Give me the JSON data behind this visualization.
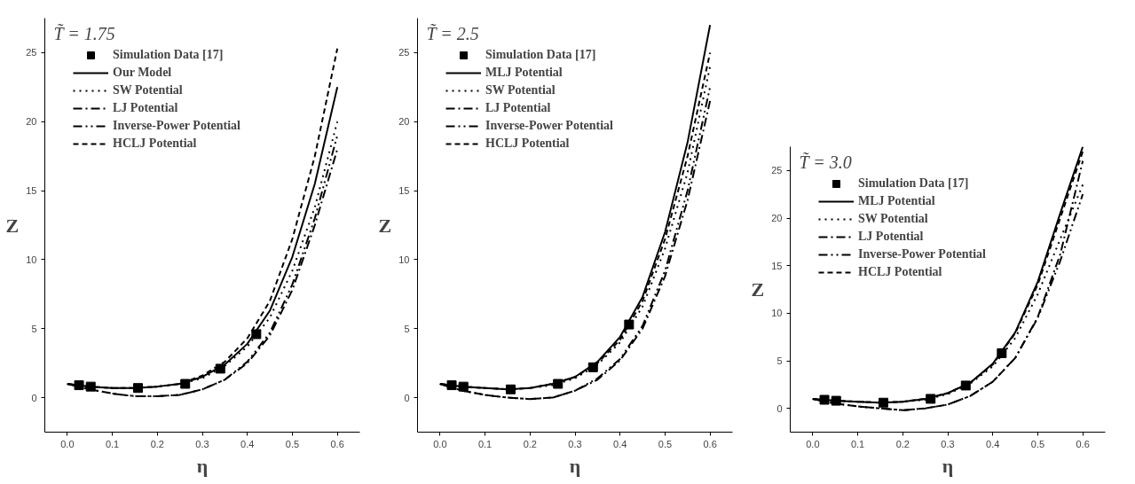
{
  "chart_data": [
    {
      "type": "line",
      "annotations": [
        "T̃ = 1.75"
      ],
      "xlabel": "η",
      "ylabel": "Z",
      "xlim": [
        -0.05,
        0.65
      ],
      "ylim": [
        -2.5,
        27.5
      ],
      "xticks": [
        {
          "value": 0,
          "label": "0.0"
        },
        {
          "value": 0.1,
          "label": "0.1"
        },
        {
          "value": 0.2,
          "label": "0.2"
        },
        {
          "value": 0.3,
          "label": "0.3"
        },
        {
          "value": 0.4,
          "label": "0.4"
        },
        {
          "value": 0.5,
          "label": "0.5"
        },
        {
          "value": 0.6,
          "label": "0.6"
        }
      ],
      "yticks": [
        0,
        5,
        10,
        15,
        20,
        25
      ],
      "grid": false,
      "legend": "top left",
      "x": [
        0,
        0.05,
        0.1,
        0.15,
        0.2,
        0.25,
        0.3,
        0.35,
        0.4,
        0.45,
        0.5,
        0.55,
        0.6
      ],
      "series": [
        {
          "name": "Simulation Data [17]",
          "type": "scatter",
          "marker": "square",
          "color": "#000000",
          "x": [
            0.026,
            0.052,
            0.157,
            0.262,
            0.34,
            0.42
          ],
          "values": [
            0.9,
            0.8,
            0.7,
            1.0,
            2.1,
            4.6
          ]
        },
        {
          "name": "Our Model",
          "color": "#000000",
          "line_style": "solid",
          "values": [
            1.0,
            0.8,
            0.7,
            0.7,
            0.8,
            1.0,
            1.5,
            2.4,
            3.9,
            6.3,
            10.2,
            15.5,
            22.5
          ]
        },
        {
          "name": "SW Potential",
          "color": "#000000",
          "line_style": "dotted",
          "values": [
            1.0,
            0.8,
            0.7,
            0.7,
            0.8,
            1.0,
            1.4,
            2.3,
            3.7,
            5.8,
            9.2,
            13.8,
            20.0
          ]
        },
        {
          "name": "LJ Potential",
          "color": "#000000",
          "line_style": "dashdot",
          "values": [
            1.0,
            0.6,
            0.3,
            0.1,
            0.1,
            0.2,
            0.6,
            1.3,
            2.5,
            4.5,
            7.8,
            12.5,
            18.0
          ]
        },
        {
          "name": "Inverse-Power Potential",
          "color": "#000000",
          "line_style": "dashdotdot",
          "values": [
            1.0,
            0.6,
            0.3,
            0.1,
            0.1,
            0.2,
            0.6,
            1.3,
            2.6,
            4.7,
            8.2,
            13.0,
            19.0
          ]
        },
        {
          "name": "HCLJ Potential",
          "color": "#000000",
          "line_style": "dashed",
          "values": [
            1.0,
            0.8,
            0.7,
            0.7,
            0.8,
            1.0,
            1.6,
            2.6,
            4.3,
            7.0,
            11.5,
            17.5,
            25.3
          ]
        }
      ]
    },
    {
      "type": "line",
      "annotations": [
        "T̃ = 2.5"
      ],
      "xlabel": "η",
      "ylabel": "Z",
      "xlim": [
        -0.05,
        0.65
      ],
      "ylim": [
        -2.5,
        27.5
      ],
      "xticks": [
        {
          "value": 0,
          "label": "0.0"
        },
        {
          "value": 0.1,
          "label": "0.1"
        },
        {
          "value": 0.2,
          "label": "0.2"
        },
        {
          "value": 0.3,
          "label": "0.3"
        },
        {
          "value": 0.4,
          "label": "0.4"
        },
        {
          "value": 0.5,
          "label": "0.5"
        },
        {
          "value": 0.6,
          "label": "0.6"
        }
      ],
      "yticks": [
        0,
        5,
        10,
        15,
        20,
        25
      ],
      "grid": false,
      "legend": "top left",
      "x": [
        0,
        0.05,
        0.1,
        0.15,
        0.2,
        0.25,
        0.3,
        0.35,
        0.4,
        0.45,
        0.5,
        0.55,
        0.6
      ],
      "series": [
        {
          "name": "Simulation Data [17]",
          "type": "scatter",
          "marker": "square",
          "color": "#000000",
          "x": [
            0.026,
            0.052,
            0.157,
            0.262,
            0.34,
            0.42
          ],
          "values": [
            0.9,
            0.8,
            0.6,
            1.0,
            2.2,
            5.3
          ]
        },
        {
          "name": "MLJ Potential",
          "color": "#000000",
          "line_style": "solid",
          "values": [
            1.0,
            0.8,
            0.7,
            0.6,
            0.7,
            1.0,
            1.5,
            2.6,
            4.4,
            7.3,
            12.0,
            18.5,
            27.0
          ]
        },
        {
          "name": "SW Potential",
          "color": "#000000",
          "line_style": "dotted",
          "values": [
            1.0,
            0.8,
            0.7,
            0.6,
            0.7,
            0.9,
            1.4,
            2.4,
            4.0,
            6.6,
            10.8,
            16.3,
            24.0
          ]
        },
        {
          "name": "LJ Potential",
          "color": "#000000",
          "line_style": "dashdot",
          "values": [
            1.0,
            0.5,
            0.2,
            0.0,
            -0.1,
            0.0,
            0.5,
            1.3,
            2.7,
            5.0,
            8.8,
            14.3,
            21.5
          ]
        },
        {
          "name": "Inverse-Power Potential",
          "color": "#000000",
          "line_style": "dashdotdot",
          "values": [
            1.0,
            0.5,
            0.2,
            0.0,
            -0.1,
            0.0,
            0.5,
            1.4,
            2.8,
            5.2,
            9.2,
            15.0,
            22.5
          ]
        },
        {
          "name": "HCLJ Potential",
          "color": "#000000",
          "line_style": "dashed",
          "values": [
            1.0,
            0.8,
            0.7,
            0.6,
            0.7,
            1.0,
            1.5,
            2.5,
            4.2,
            7.0,
            11.5,
            17.5,
            25.0
          ]
        }
      ]
    },
    {
      "type": "line",
      "annotations": [
        "T̃ = 3.0"
      ],
      "xlabel": "η",
      "ylabel": "Z",
      "xlim": [
        -0.05,
        0.65
      ],
      "ylim": [
        -2.5,
        27.5
      ],
      "xticks": [
        {
          "value": 0,
          "label": "0.0"
        },
        {
          "value": 0.1,
          "label": "0.1"
        },
        {
          "value": 0.2,
          "label": "0.2"
        },
        {
          "value": 0.3,
          "label": "0.3"
        },
        {
          "value": 0.4,
          "label": "0.4"
        },
        {
          "value": 0.5,
          "label": "0.5"
        },
        {
          "value": 0.6,
          "label": "0.6"
        }
      ],
      "yticks": [
        0,
        5,
        10,
        15,
        20,
        25
      ],
      "grid": false,
      "legend": "top left",
      "x": [
        0,
        0.05,
        0.1,
        0.15,
        0.2,
        0.25,
        0.3,
        0.35,
        0.4,
        0.45,
        0.5,
        0.55,
        0.6
      ],
      "series": [
        {
          "name": "Simulation Data [17]",
          "type": "scatter",
          "marker": "square",
          "color": "#000000",
          "x": [
            0.026,
            0.052,
            0.157,
            0.262,
            0.34,
            0.42
          ],
          "values": [
            0.9,
            0.8,
            0.6,
            1.0,
            2.4,
            5.8
          ]
        },
        {
          "name": "MLJ Potential",
          "color": "#000000",
          "line_style": "solid",
          "values": [
            1.0,
            0.8,
            0.7,
            0.6,
            0.7,
            1.0,
            1.6,
            2.7,
            4.7,
            8.0,
            13.3,
            20.5,
            27.5
          ]
        },
        {
          "name": "SW Potential",
          "color": "#000000",
          "line_style": "dotted",
          "values": [
            1.0,
            0.8,
            0.7,
            0.6,
            0.7,
            0.9,
            1.5,
            2.6,
            4.4,
            7.4,
            12.0,
            17.8,
            23.5
          ]
        },
        {
          "name": "LJ Potential",
          "color": "#000000",
          "line_style": "dashdot",
          "values": [
            1.0,
            0.5,
            0.2,
            0.0,
            -0.2,
            0.0,
            0.4,
            1.3,
            2.8,
            5.3,
            9.6,
            16.2,
            26.0
          ]
        },
        {
          "name": "Inverse-Power Potential",
          "color": "#000000",
          "line_style": "dashdotdot",
          "values": [
            1.0,
            0.5,
            0.2,
            0.0,
            -0.2,
            0.0,
            0.4,
            1.3,
            2.8,
            5.3,
            9.5,
            15.5,
            22.5
          ]
        },
        {
          "name": "HCLJ Potential",
          "color": "#000000",
          "line_style": "dashed",
          "values": [
            1.0,
            0.8,
            0.7,
            0.6,
            0.7,
            1.0,
            1.6,
            2.7,
            4.6,
            7.9,
            13.0,
            20.0,
            27.0
          ]
        }
      ]
    }
  ]
}
